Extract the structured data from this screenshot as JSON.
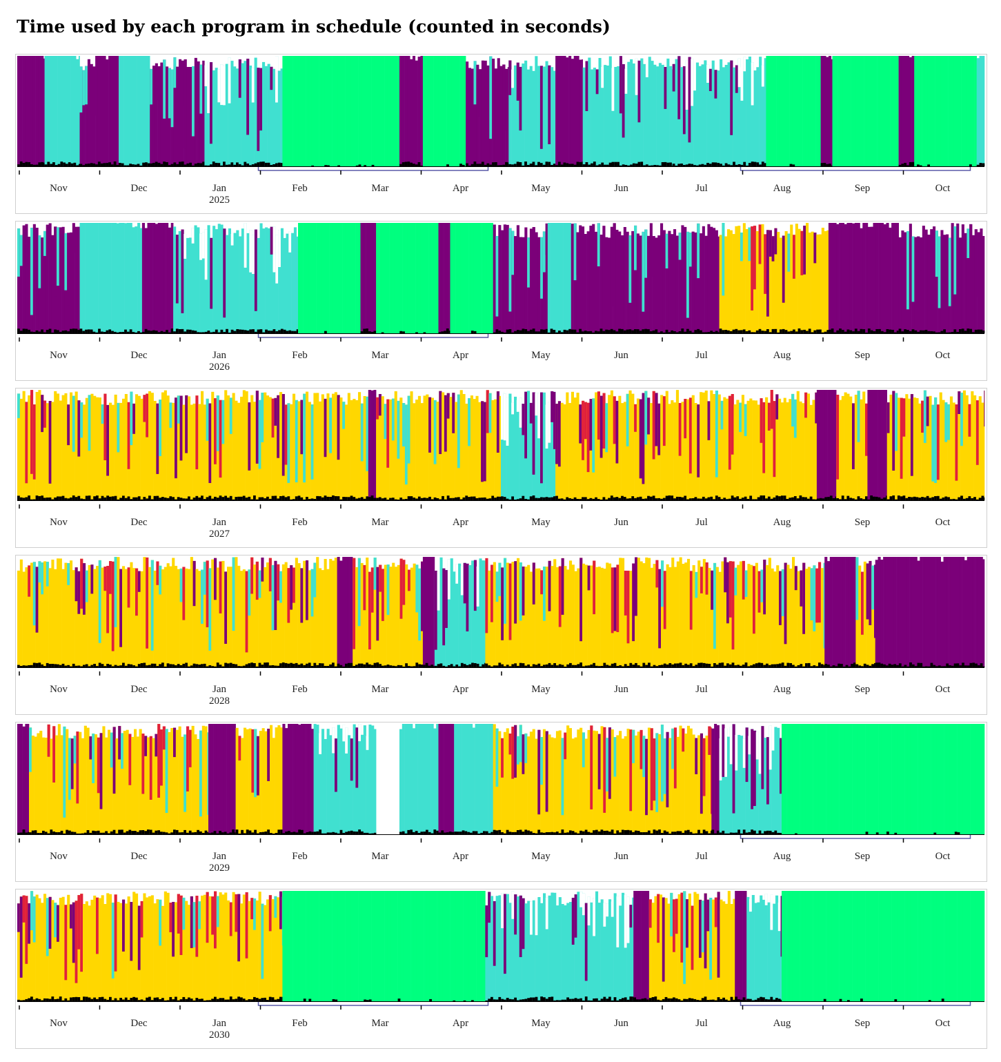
{
  "title": "Time used by each program in schedule (counted in seconds)",
  "colors": {
    "purple": "#7b0079",
    "turquoise": "#40e0d0",
    "green": "#00ff7f",
    "gold": "#ffd700",
    "red": "#e0203c",
    "black": "#000000",
    "bracket": "#5a5aa8"
  },
  "chart_data": [
    {
      "type": "area",
      "year_label": "2025",
      "months": [
        "Nov",
        "Dec",
        "Jan",
        "Feb",
        "Mar",
        "Apr",
        "May",
        "Jun",
        "Jul",
        "Aug",
        "Sep",
        "Oct"
      ],
      "brackets": [
        [
          "Feb",
          "Apr"
        ],
        [
          "Aug",
          "Oct"
        ]
      ],
      "segments": [
        [
          "purple",
          0,
          0.7,
          "full"
        ],
        [
          "turquoise",
          0.7,
          1.6,
          "full"
        ],
        [
          "purple",
          1.6,
          2.0,
          "mixed"
        ],
        [
          "purple",
          2.0,
          2.6,
          "full"
        ],
        [
          "turquoise",
          2.6,
          3.4,
          "full"
        ],
        [
          "purple",
          3.4,
          4.8,
          "mixed"
        ],
        [
          "turquoise",
          4.8,
          6.8,
          "mixed"
        ],
        [
          "green",
          6.8,
          9.8,
          "full"
        ],
        [
          "purple",
          9.8,
          10.4,
          "full"
        ],
        [
          "green",
          10.4,
          11.5,
          "full"
        ],
        [
          "purple",
          11.5,
          12.6,
          "mixed"
        ],
        [
          "turquoise",
          12.6,
          13.8,
          "mixed"
        ],
        [
          "purple",
          13.8,
          14.5,
          "full"
        ],
        [
          "turquoise",
          14.5,
          16.8,
          "mixed"
        ],
        [
          "turquoise",
          16.8,
          19.2,
          "mixed"
        ],
        [
          "green",
          19.2,
          20.6,
          "full"
        ],
        [
          "purple",
          20.6,
          20.9,
          "full"
        ],
        [
          "green",
          20.9,
          22.6,
          "full"
        ],
        [
          "purple",
          22.6,
          23.0,
          "full"
        ],
        [
          "green",
          23.0,
          24.6,
          "full"
        ],
        [
          "turquoise",
          24.6,
          24.8,
          "full"
        ]
      ]
    },
    {
      "type": "area",
      "year_label": "2026",
      "months": [
        "Nov",
        "Dec",
        "Jan",
        "Feb",
        "Mar",
        "Apr",
        "May",
        "Jun",
        "Jul",
        "Aug",
        "Sep",
        "Oct"
      ],
      "brackets": [
        [
          "Feb",
          "Apr"
        ]
      ],
      "segments": [
        [
          "purple",
          0,
          1.6,
          "mixed"
        ],
        [
          "turquoise",
          1.6,
          3.2,
          "full"
        ],
        [
          "purple",
          3.2,
          4.0,
          "full"
        ],
        [
          "turquoise",
          4.0,
          7.2,
          "mixed"
        ],
        [
          "green",
          7.2,
          8.8,
          "full"
        ],
        [
          "purple",
          8.8,
          9.2,
          "full"
        ],
        [
          "green",
          9.2,
          10.8,
          "full"
        ],
        [
          "purple",
          10.8,
          11.1,
          "full"
        ],
        [
          "green",
          11.1,
          12.2,
          "full"
        ],
        [
          "purple",
          12.2,
          13.6,
          "mixed"
        ],
        [
          "turquoise",
          13.6,
          14.2,
          "full"
        ],
        [
          "purple",
          14.2,
          18.0,
          "mixed"
        ],
        [
          "gold",
          18.0,
          20.8,
          "mixed"
        ],
        [
          "purple",
          20.8,
          22.6,
          "full"
        ],
        [
          "purple",
          22.6,
          24.8,
          "mixed"
        ]
      ]
    },
    {
      "type": "area",
      "year_label": "2027",
      "months": [
        "Nov",
        "Dec",
        "Jan",
        "Feb",
        "Mar",
        "Apr",
        "May",
        "Jun",
        "Jul",
        "Aug",
        "Sep",
        "Oct"
      ],
      "brackets": [],
      "segments": [
        [
          "gold",
          0,
          9.0,
          "mixed"
        ],
        [
          "purple",
          9.0,
          9.2,
          "full"
        ],
        [
          "gold",
          9.2,
          12.4,
          "mixed"
        ],
        [
          "turquoise",
          12.4,
          13.8,
          "mixed"
        ],
        [
          "gold",
          13.8,
          20.5,
          "mixed"
        ],
        [
          "purple",
          20.5,
          21.0,
          "full"
        ],
        [
          "gold",
          21.0,
          21.8,
          "mixed"
        ],
        [
          "purple",
          21.8,
          22.3,
          "full"
        ],
        [
          "gold",
          22.3,
          24.8,
          "mixed"
        ]
      ]
    },
    {
      "type": "area",
      "year_label": "2028",
      "months": [
        "Nov",
        "Dec",
        "Jan",
        "Feb",
        "Mar",
        "Apr",
        "May",
        "Jun",
        "Jul",
        "Aug",
        "Sep",
        "Oct"
      ],
      "brackets": [],
      "segments": [
        [
          "gold",
          0,
          8.2,
          "mixed"
        ],
        [
          "purple",
          8.2,
          8.6,
          "full"
        ],
        [
          "gold",
          8.6,
          10.4,
          "mixed"
        ],
        [
          "purple",
          10.4,
          10.7,
          "full"
        ],
        [
          "turquoise",
          10.7,
          12.0,
          "mixed"
        ],
        [
          "gold",
          12.0,
          20.7,
          "mixed"
        ],
        [
          "purple",
          20.7,
          21.5,
          "full"
        ],
        [
          "gold",
          21.5,
          22.0,
          "mixed"
        ],
        [
          "purple",
          22.0,
          24.8,
          "full"
        ]
      ]
    },
    {
      "type": "area",
      "year_label": "2029",
      "months": [
        "Nov",
        "Dec",
        "Jan",
        "Feb",
        "Mar",
        "Apr",
        "May",
        "Jun",
        "Jul",
        "Aug",
        "Sep",
        "Oct"
      ],
      "brackets": [
        [
          "Aug",
          "Oct"
        ]
      ],
      "segments": [
        [
          "purple",
          0,
          0.3,
          "full"
        ],
        [
          "gold",
          0.3,
          4.9,
          "mixed"
        ],
        [
          "purple",
          4.9,
          5.6,
          "full"
        ],
        [
          "gold",
          5.6,
          6.8,
          "mixed"
        ],
        [
          "purple",
          6.8,
          7.6,
          "full"
        ],
        [
          "turquoise",
          7.6,
          9.2,
          "mixed"
        ],
        [
          "turquoise",
          9.8,
          10.8,
          "full"
        ],
        [
          "purple",
          10.8,
          11.2,
          "full"
        ],
        [
          "turquoise",
          11.2,
          12.2,
          "full"
        ],
        [
          "gold",
          12.2,
          17.8,
          "mixed"
        ],
        [
          "purple",
          17.8,
          18.0,
          "full"
        ],
        [
          "turquoise",
          18.0,
          19.6,
          "mixed"
        ],
        [
          "green",
          19.6,
          24.8,
          "full"
        ]
      ]
    },
    {
      "type": "area",
      "year_label": "2030",
      "months": [
        "Nov",
        "Dec",
        "Jan",
        "Feb",
        "Mar",
        "Apr",
        "May",
        "Jun",
        "Jul",
        "Aug",
        "Sep",
        "Oct"
      ],
      "brackets": [
        [
          "Feb",
          "Apr"
        ],
        [
          "Aug",
          "Oct"
        ]
      ],
      "segments": [
        [
          "gold",
          0,
          6.8,
          "mixed"
        ],
        [
          "green",
          6.8,
          12.0,
          "full"
        ],
        [
          "turquoise",
          12.0,
          15.8,
          "mixed"
        ],
        [
          "purple",
          15.8,
          16.2,
          "full"
        ],
        [
          "gold",
          16.2,
          18.4,
          "mixed"
        ],
        [
          "purple",
          18.4,
          18.7,
          "full"
        ],
        [
          "turquoise",
          18.7,
          19.6,
          "mixed"
        ],
        [
          "green",
          19.6,
          24.8,
          "full"
        ]
      ]
    }
  ]
}
